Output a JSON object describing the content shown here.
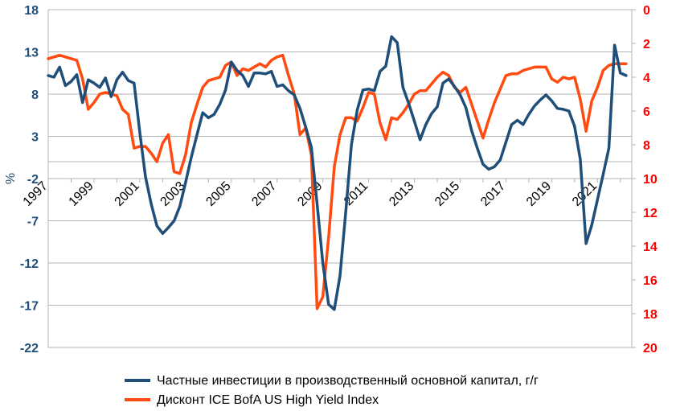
{
  "chart_data": {
    "type": "line",
    "title": "",
    "ylabel_left": "%",
    "yaxis_left": {
      "min": -22,
      "max": 18,
      "ticks": [
        18,
        13,
        8,
        3,
        -2,
        -7,
        -12,
        -17,
        -22
      ],
      "color": "#1f4e79"
    },
    "yaxis_right": {
      "min": 0,
      "max": 20,
      "inverted": true,
      "ticks": [
        0,
        2,
        4,
        6,
        8,
        10,
        12,
        14,
        16,
        18,
        20
      ],
      "color": "#ff0000"
    },
    "xaxis": {
      "min": 1997,
      "max": 2022.5,
      "ticks": [
        "1997",
        "1999",
        "2001",
        "2003",
        "2005",
        "2007",
        "2009",
        "2011",
        "2013",
        "2015",
        "2017",
        "2019",
        "2021"
      ]
    },
    "legend_position": "bottom",
    "series": [
      {
        "name": "Частные инвестиции в производственный основной капитал, г/г",
        "axis": "left",
        "color": "#1f4e79",
        "points": [
          [
            1997.0,
            10.2
          ],
          [
            1997.25,
            10.0
          ],
          [
            1997.5,
            11.2
          ],
          [
            1997.75,
            9.0
          ],
          [
            1998.0,
            9.5
          ],
          [
            1998.25,
            10.3
          ],
          [
            1998.5,
            7.0
          ],
          [
            1998.75,
            9.7
          ],
          [
            1999.0,
            9.3
          ],
          [
            1999.25,
            8.8
          ],
          [
            1999.5,
            9.9
          ],
          [
            1999.75,
            7.7
          ],
          [
            2000.0,
            9.7
          ],
          [
            2000.25,
            10.6
          ],
          [
            2000.5,
            9.6
          ],
          [
            2000.75,
            9.3
          ],
          [
            2001.0,
            3.5
          ],
          [
            2001.25,
            -1.8
          ],
          [
            2001.5,
            -5.0
          ],
          [
            2001.75,
            -7.6
          ],
          [
            2002.0,
            -8.5
          ],
          [
            2002.25,
            -7.8
          ],
          [
            2002.5,
            -7.0
          ],
          [
            2002.75,
            -5.3
          ],
          [
            2003.0,
            -2.5
          ],
          [
            2003.25,
            0.5
          ],
          [
            2003.5,
            3.2
          ],
          [
            2003.75,
            5.8
          ],
          [
            2004.0,
            5.2
          ],
          [
            2004.25,
            5.6
          ],
          [
            2004.5,
            6.8
          ],
          [
            2004.75,
            8.5
          ],
          [
            2005.0,
            11.8
          ],
          [
            2005.25,
            10.8
          ],
          [
            2005.5,
            10.2
          ],
          [
            2005.75,
            8.9
          ],
          [
            2006.0,
            10.5
          ],
          [
            2006.25,
            10.5
          ],
          [
            2006.5,
            10.4
          ],
          [
            2006.75,
            10.7
          ],
          [
            2007.0,
            8.9
          ],
          [
            2007.25,
            9.1
          ],
          [
            2007.5,
            8.4
          ],
          [
            2007.75,
            7.9
          ],
          [
            2008.0,
            6.3
          ],
          [
            2008.25,
            4.1
          ],
          [
            2008.5,
            1.7
          ],
          [
            2008.75,
            -5.0
          ],
          [
            2009.0,
            -12.0
          ],
          [
            2009.25,
            -16.9
          ],
          [
            2009.5,
            -17.5
          ],
          [
            2009.75,
            -13.5
          ],
          [
            2010.0,
            -6.0
          ],
          [
            2010.25,
            2.0
          ],
          [
            2010.5,
            6.1
          ],
          [
            2010.75,
            8.5
          ],
          [
            2011.0,
            8.6
          ],
          [
            2011.25,
            8.4
          ],
          [
            2011.5,
            10.7
          ],
          [
            2011.75,
            11.3
          ],
          [
            2012.0,
            14.8
          ],
          [
            2012.25,
            14.1
          ],
          [
            2012.5,
            8.8
          ],
          [
            2012.75,
            6.9
          ],
          [
            2013.0,
            4.8
          ],
          [
            2013.25,
            2.6
          ],
          [
            2013.5,
            4.4
          ],
          [
            2013.75,
            5.7
          ],
          [
            2014.0,
            6.5
          ],
          [
            2014.25,
            9.3
          ],
          [
            2014.5,
            9.8
          ],
          [
            2014.75,
            8.9
          ],
          [
            2015.0,
            7.9
          ],
          [
            2015.25,
            6.4
          ],
          [
            2015.5,
            3.7
          ],
          [
            2015.75,
            1.6
          ],
          [
            2016.0,
            -0.3
          ],
          [
            2016.25,
            -0.9
          ],
          [
            2016.5,
            -0.6
          ],
          [
            2016.75,
            0.2
          ],
          [
            2017.0,
            2.3
          ],
          [
            2017.25,
            4.4
          ],
          [
            2017.5,
            4.9
          ],
          [
            2017.75,
            4.4
          ],
          [
            2018.0,
            5.6
          ],
          [
            2018.25,
            6.6
          ],
          [
            2018.5,
            7.3
          ],
          [
            2018.75,
            7.9
          ],
          [
            2019.0,
            7.2
          ],
          [
            2019.25,
            6.3
          ],
          [
            2019.5,
            6.2
          ],
          [
            2019.75,
            6.0
          ],
          [
            2020.0,
            4.2
          ],
          [
            2020.25,
            0.3
          ],
          [
            2020.5,
            -9.7
          ],
          [
            2020.75,
            -7.5
          ],
          [
            2021.0,
            -4.5
          ],
          [
            2021.25,
            -1.5
          ],
          [
            2021.5,
            1.6
          ],
          [
            2021.75,
            13.8
          ],
          [
            2022.0,
            10.5
          ],
          [
            2022.25,
            10.2
          ]
        ]
      },
      {
        "name": "Дисконт ICE BofA US High Yield Index",
        "axis": "right",
        "color": "#ff4a10",
        "points": [
          [
            1997.0,
            2.9
          ],
          [
            1997.25,
            2.8
          ],
          [
            1997.5,
            2.7
          ],
          [
            1997.75,
            2.8
          ],
          [
            1998.0,
            2.9
          ],
          [
            1998.25,
            3.0
          ],
          [
            1998.5,
            4.1
          ],
          [
            1998.75,
            5.9
          ],
          [
            1999.0,
            5.5
          ],
          [
            1999.25,
            5.0
          ],
          [
            1999.5,
            4.9
          ],
          [
            1999.75,
            5.0
          ],
          [
            2000.0,
            5.1
          ],
          [
            2000.25,
            5.9
          ],
          [
            2000.5,
            6.2
          ],
          [
            2000.75,
            8.2
          ],
          [
            2001.0,
            8.1
          ],
          [
            2001.25,
            8.1
          ],
          [
            2001.5,
            8.5
          ],
          [
            2001.75,
            9.0
          ],
          [
            2002.0,
            7.9
          ],
          [
            2002.25,
            7.4
          ],
          [
            2002.5,
            9.6
          ],
          [
            2002.75,
            9.7
          ],
          [
            2003.0,
            8.6
          ],
          [
            2003.25,
            6.7
          ],
          [
            2003.5,
            5.6
          ],
          [
            2003.75,
            4.6
          ],
          [
            2004.0,
            4.2
          ],
          [
            2004.25,
            4.1
          ],
          [
            2004.5,
            4.0
          ],
          [
            2004.75,
            3.3
          ],
          [
            2005.0,
            3.1
          ],
          [
            2005.25,
            3.9
          ],
          [
            2005.5,
            3.5
          ],
          [
            2005.75,
            3.6
          ],
          [
            2006.0,
            3.4
          ],
          [
            2006.25,
            3.2
          ],
          [
            2006.5,
            3.4
          ],
          [
            2006.75,
            3.0
          ],
          [
            2007.0,
            2.8
          ],
          [
            2007.25,
            2.7
          ],
          [
            2007.5,
            3.9
          ],
          [
            2007.75,
            5.0
          ],
          [
            2008.0,
            7.4
          ],
          [
            2008.25,
            7.0
          ],
          [
            2008.5,
            8.6
          ],
          [
            2008.75,
            17.7
          ],
          [
            2009.0,
            17.0
          ],
          [
            2009.25,
            13.5
          ],
          [
            2009.5,
            9.3
          ],
          [
            2009.75,
            7.4
          ],
          [
            2010.0,
            6.4
          ],
          [
            2010.25,
            6.4
          ],
          [
            2010.5,
            6.6
          ],
          [
            2010.75,
            5.8
          ],
          [
            2011.0,
            4.9
          ],
          [
            2011.25,
            5.0
          ],
          [
            2011.5,
            6.7
          ],
          [
            2011.75,
            7.7
          ],
          [
            2012.0,
            6.4
          ],
          [
            2012.25,
            6.5
          ],
          [
            2012.5,
            6.1
          ],
          [
            2012.75,
            5.6
          ],
          [
            2013.0,
            5.0
          ],
          [
            2013.25,
            4.8
          ],
          [
            2013.5,
            4.8
          ],
          [
            2013.75,
            4.4
          ],
          [
            2014.0,
            4.0
          ],
          [
            2014.25,
            3.7
          ],
          [
            2014.5,
            3.9
          ],
          [
            2014.75,
            4.6
          ],
          [
            2015.0,
            4.9
          ],
          [
            2015.25,
            4.6
          ],
          [
            2015.5,
            5.6
          ],
          [
            2015.75,
            6.6
          ],
          [
            2016.0,
            7.6
          ],
          [
            2016.25,
            6.5
          ],
          [
            2016.5,
            5.5
          ],
          [
            2016.75,
            4.7
          ],
          [
            2017.0,
            3.9
          ],
          [
            2017.25,
            3.8
          ],
          [
            2017.5,
            3.8
          ],
          [
            2017.75,
            3.6
          ],
          [
            2018.0,
            3.5
          ],
          [
            2018.25,
            3.4
          ],
          [
            2018.5,
            3.4
          ],
          [
            2018.75,
            3.4
          ],
          [
            2019.0,
            4.1
          ],
          [
            2019.25,
            4.3
          ],
          [
            2019.5,
            4.0
          ],
          [
            2019.75,
            4.1
          ],
          [
            2020.0,
            4.0
          ],
          [
            2020.25,
            5.3
          ],
          [
            2020.5,
            7.2
          ],
          [
            2020.75,
            5.4
          ],
          [
            2021.0,
            4.6
          ],
          [
            2021.25,
            3.6
          ],
          [
            2021.5,
            3.3
          ],
          [
            2021.75,
            3.2
          ],
          [
            2022.0,
            3.2
          ],
          [
            2022.25,
            3.2
          ]
        ]
      }
    ]
  }
}
